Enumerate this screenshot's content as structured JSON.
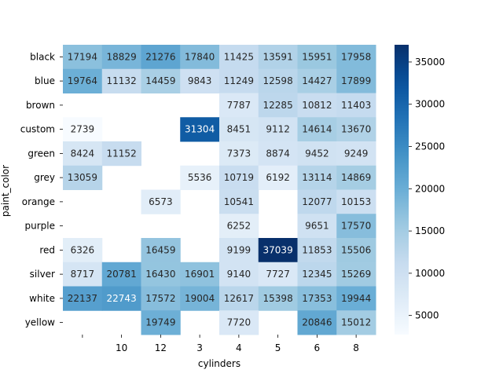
{
  "chart_data": {
    "type": "heatmap",
    "xlabel": "cylinders",
    "ylabel": "paint_color",
    "x_categories": [
      "",
      "10",
      "12",
      "3",
      "4",
      "5",
      "6",
      "8"
    ],
    "y_categories": [
      "black",
      "blue",
      "brown",
      "custom",
      "green",
      "grey",
      "orange",
      "purple",
      "red",
      "silver",
      "white",
      "yellow"
    ],
    "values": [
      [
        17194,
        18829,
        21276,
        17840,
        11425,
        13591,
        15951,
        17958
      ],
      [
        19764,
        11132,
        14459,
        9843,
        11249,
        12598,
        14427,
        17899
      ],
      [
        null,
        null,
        null,
        null,
        7787,
        12285,
        10812,
        11403
      ],
      [
        2739,
        null,
        null,
        31304,
        8451,
        9112,
        14614,
        13670
      ],
      [
        8424,
        11152,
        null,
        null,
        7373,
        8874,
        9452,
        9249
      ],
      [
        13059,
        null,
        null,
        5536,
        10719,
        6192,
        13114,
        14869
      ],
      [
        null,
        null,
        6573,
        null,
        10541,
        null,
        12077,
        10153
      ],
      [
        null,
        null,
        null,
        null,
        6252,
        null,
        9651,
        17570
      ],
      [
        6326,
        null,
        16459,
        null,
        9199,
        37039,
        11853,
        15506
      ],
      [
        8717,
        20781,
        16430,
        16901,
        9140,
        7727,
        12345,
        15269
      ],
      [
        22137,
        22743,
        17572,
        19004,
        12617,
        15398,
        17353,
        19944
      ],
      [
        null,
        null,
        19749,
        null,
        7720,
        null,
        20846,
        15012
      ]
    ],
    "colorbar_ticks": [
      5000,
      10000,
      15000,
      20000,
      25000,
      30000,
      35000
    ],
    "colorbar_tick_labels": [
      "5000",
      "10000",
      "15000",
      "20000",
      "25000",
      "30000",
      "35000"
    ],
    "value_range": [
      2739,
      37039
    ],
    "colormap": "Blues",
    "annotations": "cell values shown"
  }
}
